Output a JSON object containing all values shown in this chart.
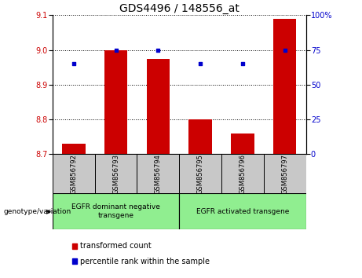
{
  "title": "GDS4496 / 148556_at",
  "categories": [
    "GSM856792",
    "GSM856793",
    "GSM856794",
    "GSM856795",
    "GSM856796",
    "GSM856797"
  ],
  "bar_values": [
    8.73,
    9.0,
    8.975,
    8.8,
    8.76,
    9.09
  ],
  "bar_base": 8.7,
  "percentile_values": [
    65,
    75,
    75,
    65,
    65,
    75
  ],
  "left_ylim": [
    8.7,
    9.1
  ],
  "right_ylim": [
    0,
    100
  ],
  "left_yticks": [
    8.7,
    8.8,
    8.9,
    9.0,
    9.1
  ],
  "right_yticks": [
    0,
    25,
    50,
    75,
    100
  ],
  "right_yticklabels": [
    "0",
    "25",
    "50",
    "75",
    "100%"
  ],
  "bar_color": "#CC0000",
  "dot_color": "#0000CC",
  "grid_color": "#000000",
  "bg_color": "#FFFFFF",
  "group1_label": "EGFR dominant negative\ntransgene",
  "group2_label": "EGFR activated transgene",
  "group1_indices": [
    0,
    1,
    2
  ],
  "group2_indices": [
    3,
    4,
    5
  ],
  "genotype_label": "genotype/variation",
  "legend_bar_label": "transformed count",
  "legend_dot_label": "percentile rank within the sample",
  "bar_width": 0.55,
  "title_fontsize": 10,
  "tick_fontsize": 7,
  "label_fontsize": 7,
  "group_box_color": "#90EE90",
  "sample_box_color": "#C8C8C8"
}
